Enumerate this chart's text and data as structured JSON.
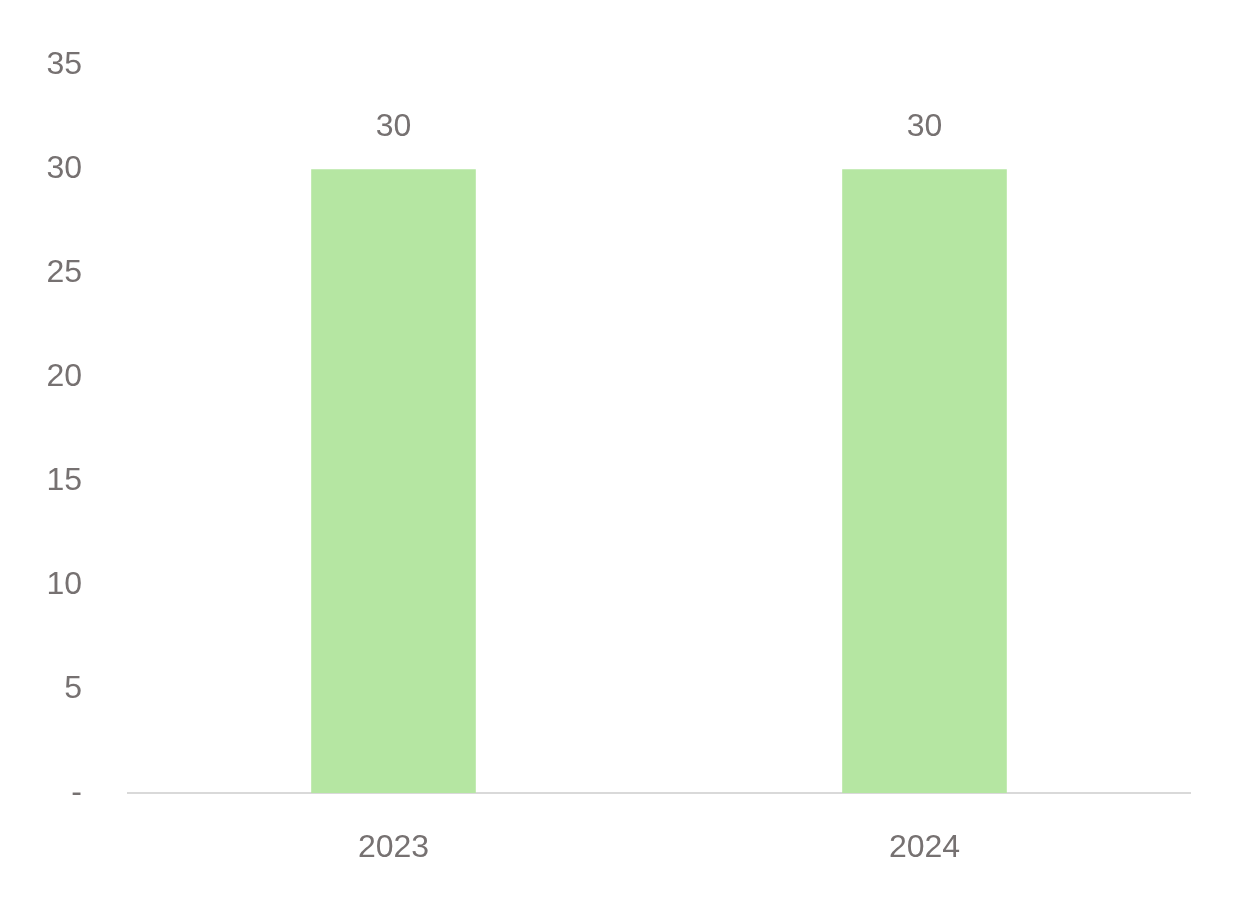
{
  "chart_data": {
    "type": "bar",
    "categories": [
      "2023",
      "2024"
    ],
    "values": [
      30,
      30
    ],
    "color": "#b5e6a2",
    "ylim": [
      0,
      35
    ],
    "yticks": [
      {
        "value": 0,
        "label": "-"
      },
      5,
      10,
      15,
      20,
      25,
      30,
      35
    ],
    "grid": false,
    "legend": false,
    "data_labels": true
  }
}
